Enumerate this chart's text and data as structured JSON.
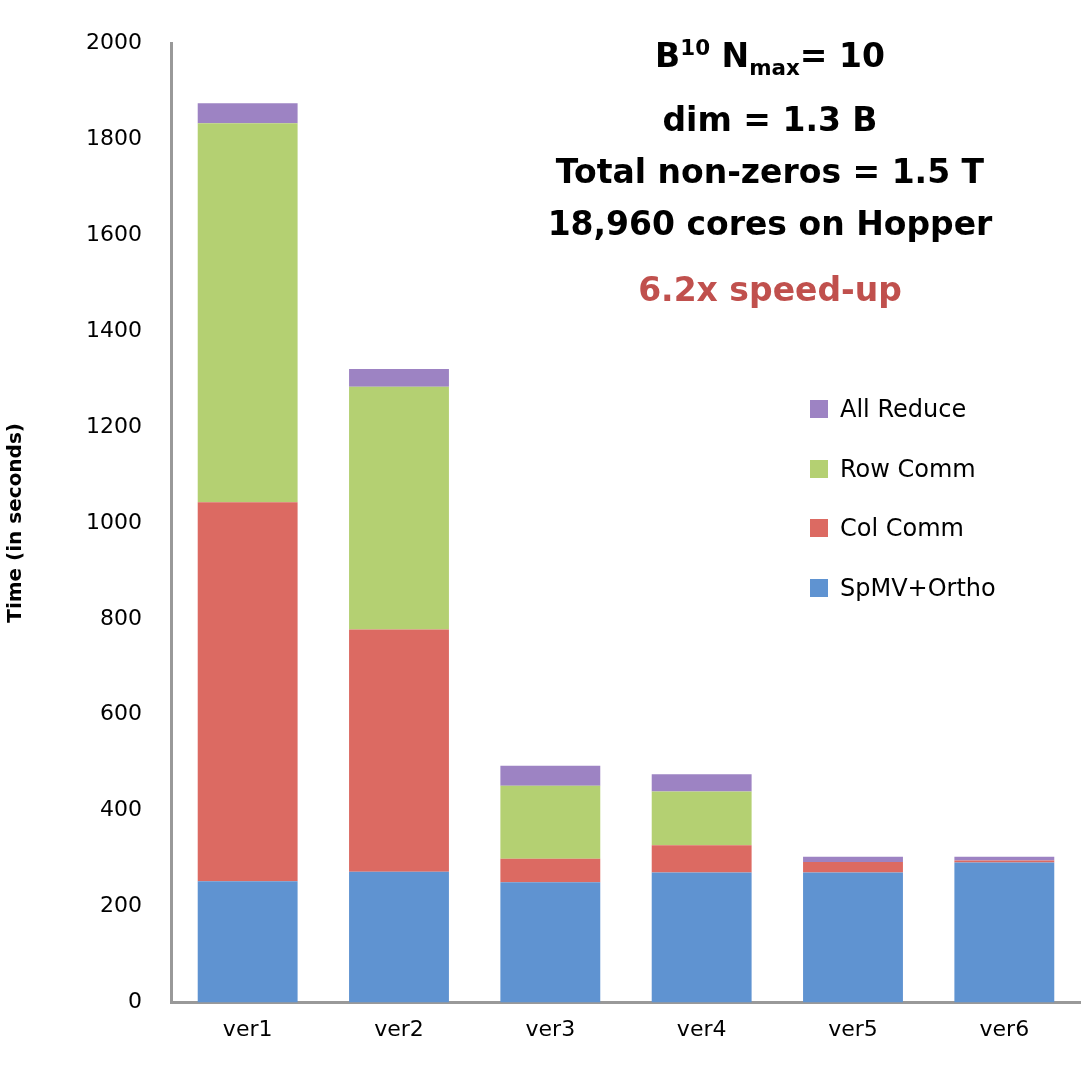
{
  "chart_data": {
    "type": "bar",
    "stacked": true,
    "title": "B$^{10}$ N$_{max}$= 10\ndim = 1.3 B\nTotal non-zeros = 1.5 T\n18,960 cores on Hopper",
    "annotations": [
      "6.2x speed-up"
    ],
    "ylabel": "Time (in seconds)",
    "categories": [
      "ver1",
      "ver2",
      "ver3",
      "ver4",
      "ver5",
      "ver6"
    ],
    "series": [
      {
        "name": "SpMV+Ortho",
        "color": "#5f93d1",
        "values": [
          253,
          273,
          251,
          271,
          271,
          292
        ]
      },
      {
        "name": "Col Comm",
        "color": "#dc6a62",
        "values": [
          790,
          505,
          49,
          57,
          22,
          4
        ]
      },
      {
        "name": "Row Comm",
        "color": "#b4d072",
        "values": [
          790,
          506,
          152,
          112,
          0,
          0
        ]
      },
      {
        "name": "All Reduce",
        "color": "#9d83c3",
        "values": [
          42,
          37,
          42,
          36,
          11,
          8
        ]
      }
    ],
    "ylim": [
      0,
      2000
    ],
    "yticks": [
      0,
      200,
      400,
      600,
      800,
      1000,
      1200,
      1400,
      1600,
      1800,
      2000
    ],
    "grid": false,
    "legend": "right"
  }
}
